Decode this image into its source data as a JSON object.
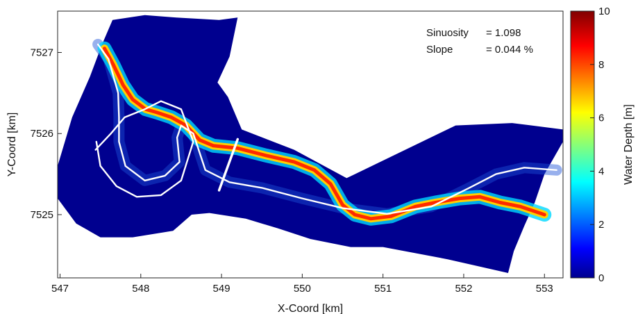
{
  "chart_data": {
    "type": "heatmap",
    "title": "",
    "xlabel": "X-Coord [km]",
    "ylabel": "Y-Coord [km]",
    "xlim": [
      546.97,
      553.23
    ],
    "ylim": [
      7524.22,
      7527.51
    ],
    "xticks": [
      "547",
      "548",
      "549",
      "550",
      "551",
      "552",
      "553"
    ],
    "yticks": [
      "7525",
      "7526",
      "7527"
    ],
    "colorbar": {
      "label": "Water Depth [m]",
      "range": [
        0,
        10
      ],
      "ticks": [
        "0",
        "2",
        "4",
        "6",
        "8",
        "10"
      ],
      "colormap": "jet"
    },
    "annotations": {
      "sinuosity_label": "Sinuosity",
      "sinuosity_value": "= 1.098",
      "slope_label": "Slope",
      "slope_value": "= 0.044 %"
    },
    "domain_outline": [
      [
        547.52,
        7527.1
      ],
      [
        547.65,
        7527.4
      ],
      [
        548.05,
        7527.46
      ],
      [
        548.44,
        7527.43
      ],
      [
        548.97,
        7527.4
      ],
      [
        549.2,
        7527.43
      ],
      [
        549.1,
        7526.95
      ],
      [
        548.95,
        7526.63
      ],
      [
        549.08,
        7526.45
      ],
      [
        549.25,
        7526.05
      ],
      [
        549.9,
        7525.8
      ],
      [
        550.55,
        7525.45
      ],
      [
        551.9,
        7526.1
      ],
      [
        552.6,
        7526.13
      ],
      [
        553.23,
        7526.05
      ],
      [
        553.23,
        7525.9
      ],
      [
        553.0,
        7525.5
      ],
      [
        552.88,
        7525.15
      ],
      [
        552.75,
        7524.86
      ],
      [
        552.62,
        7524.55
      ],
      [
        552.55,
        7524.28
      ],
      [
        551.8,
        7524.45
      ],
      [
        551.0,
        7524.6
      ],
      [
        550.6,
        7524.6
      ],
      [
        550.1,
        7524.7
      ],
      [
        549.7,
        7524.83
      ],
      [
        549.3,
        7524.95
      ],
      [
        548.85,
        7525.02
      ],
      [
        548.63,
        7525.0
      ],
      [
        548.4,
        7524.8
      ],
      [
        547.9,
        7524.72
      ],
      [
        547.5,
        7524.72
      ],
      [
        547.2,
        7524.89
      ],
      [
        546.97,
        7525.2
      ],
      [
        546.97,
        7525.6
      ],
      [
        547.15,
        7526.2
      ],
      [
        547.37,
        7526.7
      ]
    ],
    "deep_channel_centerline": [
      [
        547.55,
        7527.05
      ],
      [
        547.66,
        7526.85
      ],
      [
        547.78,
        7526.6
      ],
      [
        547.9,
        7526.42
      ],
      [
        548.06,
        7526.3
      ],
      [
        548.2,
        7526.26
      ],
      [
        548.38,
        7526.2
      ],
      [
        548.56,
        7526.1
      ],
      [
        548.73,
        7525.92
      ],
      [
        548.9,
        7525.85
      ],
      [
        549.2,
        7525.82
      ],
      [
        549.55,
        7525.73
      ],
      [
        549.9,
        7525.65
      ],
      [
        550.15,
        7525.55
      ],
      [
        550.35,
        7525.38
      ],
      [
        550.5,
        7525.12
      ],
      [
        550.65,
        7525.0
      ],
      [
        550.85,
        7524.95
      ],
      [
        551.1,
        7524.98
      ],
      [
        551.4,
        7525.1
      ],
      [
        551.65,
        7525.15
      ],
      [
        551.95,
        7525.2
      ],
      [
        552.2,
        7525.22
      ],
      [
        552.45,
        7525.15
      ],
      [
        552.7,
        7525.1
      ],
      [
        553.0,
        7525.0
      ]
    ],
    "upper_bank_line": [
      [
        547.47,
        7527.1
      ],
      [
        547.6,
        7526.92
      ],
      [
        547.72,
        7526.5
      ],
      [
        547.73,
        7526.2
      ],
      [
        547.73,
        7525.9
      ],
      [
        547.81,
        7525.6
      ],
      [
        548.05,
        7525.42
      ],
      [
        548.3,
        7525.48
      ],
      [
        548.48,
        7525.65
      ],
      [
        548.45,
        7525.95
      ],
      [
        548.5,
        7526.1
      ],
      [
        548.65,
        7526.0
      ],
      [
        548.8,
        7525.55
      ],
      [
        549.1,
        7525.4
      ],
      [
        549.5,
        7525.33
      ],
      [
        550.0,
        7525.2
      ],
      [
        550.5,
        7525.08
      ],
      [
        551.05,
        7525.01
      ],
      [
        551.6,
        7525.1
      ],
      [
        552.05,
        7525.32
      ],
      [
        552.4,
        7525.5
      ],
      [
        552.75,
        7525.58
      ],
      [
        553.15,
        7525.55
      ]
    ],
    "lower_bank_line": [
      [
        547.45,
        7525.9
      ],
      [
        547.5,
        7525.6
      ],
      [
        547.7,
        7525.35
      ],
      [
        547.95,
        7525.22
      ],
      [
        548.25,
        7525.24
      ],
      [
        548.5,
        7525.42
      ],
      [
        548.65,
        7525.9
      ],
      [
        548.5,
        7526.3
      ],
      [
        548.25,
        7526.4
      ],
      [
        548.05,
        7526.3
      ],
      [
        547.8,
        7526.2
      ],
      [
        547.63,
        7526.0
      ],
      [
        547.44,
        7525.8
      ]
    ],
    "cross_section_line": [
      [
        548.97,
        7525.3
      ],
      [
        549.2,
        7525.93
      ]
    ]
  }
}
